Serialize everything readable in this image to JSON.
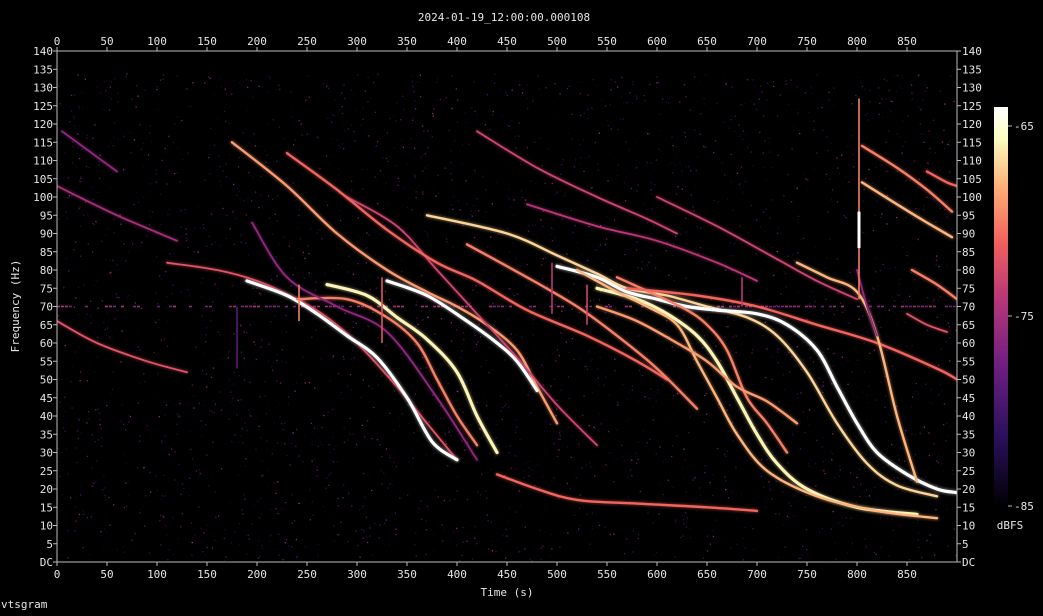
{
  "chart_data": {
    "type": "heatmap",
    "title": "2024-01-19_12:00:00.000108",
    "xlabel": "Time (s)",
    "ylabel": "Frequency (Hz)",
    "xlim": [
      0,
      900
    ],
    "ylim": [
      0,
      140
    ],
    "x_ticks": [
      "0",
      "50",
      "100",
      "150",
      "200",
      "250",
      "300",
      "350",
      "400",
      "450",
      "500",
      "550",
      "600",
      "650",
      "700",
      "750",
      "800",
      "850"
    ],
    "y_ticks": [
      "DC",
      "5",
      "10",
      "15",
      "20",
      "25",
      "30",
      "35",
      "40",
      "45",
      "50",
      "55",
      "60",
      "65",
      "70",
      "75",
      "80",
      "85",
      "90",
      "95",
      "100",
      "105",
      "110",
      "115",
      "120",
      "125",
      "130",
      "135",
      "140"
    ],
    "colorbar": {
      "label": "dBFS",
      "ticks": [
        "-65",
        "-75",
        "-85"
      ],
      "tick_values": [
        -65,
        -75,
        -85
      ],
      "range": [
        -85,
        -64
      ],
      "colormap": [
        "#000004",
        "#3b0f70",
        "#8c2981",
        "#de4968",
        "#fe9f6d",
        "#fcfdbf",
        "#ffffff"
      ]
    },
    "noise_band": [
      0,
      134
    ],
    "tones": [
      {
        "freq": 70,
        "t_start": 0,
        "t_end": 900,
        "level": -78
      }
    ],
    "tracks": [
      {
        "level": -72,
        "points": [
          [
            0,
            66
          ],
          [
            40,
            60
          ],
          [
            90,
            55
          ],
          [
            130,
            52
          ]
        ]
      },
      {
        "level": -75,
        "points": [
          [
            0,
            103
          ],
          [
            60,
            95
          ],
          [
            120,
            88
          ]
        ]
      },
      {
        "level": -76,
        "points": [
          [
            5,
            118
          ],
          [
            60,
            107
          ]
        ]
      },
      {
        "level": -72,
        "points": [
          [
            110,
            82
          ],
          [
            160,
            80
          ],
          [
            200,
            77
          ],
          [
            240,
            72
          ],
          [
            270,
            67
          ],
          [
            300,
            60
          ],
          [
            340,
            48
          ],
          [
            370,
            38
          ],
          [
            400,
            28
          ]
        ]
      },
      {
        "level": -64,
        "points": [
          [
            190,
            77
          ],
          [
            230,
            73
          ],
          [
            260,
            68
          ],
          [
            290,
            62
          ],
          [
            320,
            56
          ],
          [
            350,
            45
          ],
          [
            375,
            33
          ],
          [
            400,
            28
          ]
        ]
      },
      {
        "level": -70,
        "points": [
          [
            240,
            72
          ],
          [
            290,
            72
          ],
          [
            330,
            67
          ],
          [
            360,
            60
          ],
          [
            380,
            50
          ],
          [
            400,
            40
          ],
          [
            420,
            32
          ]
        ]
      },
      {
        "level": -66,
        "points": [
          [
            270,
            76
          ],
          [
            310,
            73
          ],
          [
            340,
            67
          ],
          [
            370,
            61
          ],
          [
            400,
            52
          ],
          [
            420,
            40
          ],
          [
            440,
            30
          ]
        ]
      },
      {
        "level": -69,
        "points": [
          [
            175,
            115
          ],
          [
            230,
            103
          ],
          [
            280,
            90
          ],
          [
            330,
            80
          ],
          [
            370,
            74
          ],
          [
            400,
            70
          ],
          [
            430,
            65
          ],
          [
            460,
            58
          ],
          [
            480,
            48
          ],
          [
            500,
            38
          ]
        ]
      },
      {
        "level": -64,
        "points": [
          [
            330,
            77
          ],
          [
            370,
            73
          ],
          [
            410,
            66
          ],
          [
            440,
            60
          ],
          [
            460,
            55
          ],
          [
            480,
            47
          ]
        ]
      },
      {
        "level": -73,
        "points": [
          [
            290,
            100
          ],
          [
            340,
            92
          ],
          [
            380,
            80
          ],
          [
            420,
            68
          ],
          [
            460,
            56
          ],
          [
            500,
            43
          ],
          [
            540,
            32
          ]
        ]
      },
      {
        "level": -71,
        "points": [
          [
            230,
            112
          ],
          [
            280,
            102
          ],
          [
            330,
            91
          ],
          [
            380,
            82
          ],
          [
            420,
            77
          ],
          [
            470,
            69
          ],
          [
            530,
            62
          ],
          [
            580,
            55
          ],
          [
            610,
            50
          ]
        ]
      },
      {
        "level": -76,
        "points": [
          [
            195,
            93
          ],
          [
            230,
            78
          ],
          [
            280,
            70
          ],
          [
            330,
            63
          ],
          [
            380,
            45
          ],
          [
            420,
            28
          ]
        ]
      },
      {
        "level": -70,
        "points": [
          [
            410,
            87
          ],
          [
            470,
            78
          ],
          [
            520,
            70
          ],
          [
            560,
            62
          ],
          [
            600,
            53
          ],
          [
            640,
            42
          ]
        ]
      },
      {
        "level": -67,
        "points": [
          [
            370,
            95
          ],
          [
            450,
            90
          ],
          [
            500,
            84
          ],
          [
            540,
            79
          ],
          [
            570,
            75
          ],
          [
            610,
            73
          ],
          [
            650,
            70
          ],
          [
            690,
            67
          ],
          [
            720,
            62
          ],
          [
            750,
            52
          ],
          [
            780,
            38
          ],
          [
            810,
            27
          ],
          [
            840,
            21
          ],
          [
            880,
            18
          ]
        ]
      },
      {
        "level": -64,
        "points": [
          [
            500,
            81
          ],
          [
            540,
            78
          ],
          [
            570,
            74
          ],
          [
            600,
            72
          ],
          [
            630,
            70
          ],
          [
            660,
            69
          ],
          [
            700,
            68
          ],
          [
            730,
            65
          ],
          [
            760,
            58
          ],
          [
            780,
            48
          ],
          [
            800,
            38
          ],
          [
            820,
            30
          ],
          [
            850,
            24
          ],
          [
            880,
            20
          ],
          [
            900,
            19
          ]
        ]
      },
      {
        "level": -66,
        "points": [
          [
            540,
            75
          ],
          [
            580,
            72
          ],
          [
            610,
            68
          ],
          [
            640,
            62
          ],
          [
            660,
            55
          ],
          [
            680,
            45
          ],
          [
            700,
            35
          ],
          [
            720,
            27
          ],
          [
            750,
            20
          ],
          [
            800,
            15
          ],
          [
            860,
            13
          ]
        ]
      },
      {
        "level": -68,
        "points": [
          [
            520,
            80
          ],
          [
            560,
            74
          ],
          [
            590,
            70
          ],
          [
            620,
            65
          ],
          [
            640,
            55
          ],
          [
            660,
            45
          ],
          [
            680,
            35
          ],
          [
            710,
            25
          ],
          [
            760,
            18
          ],
          [
            820,
            14
          ],
          [
            880,
            12
          ]
        ]
      },
      {
        "level": -70,
        "points": [
          [
            560,
            78
          ],
          [
            600,
            73
          ],
          [
            630,
            69
          ],
          [
            650,
            65
          ],
          [
            670,
            58
          ],
          [
            690,
            45
          ],
          [
            710,
            38
          ],
          [
            730,
            30
          ]
        ]
      },
      {
        "level": -69,
        "points": [
          [
            540,
            70
          ],
          [
            580,
            66
          ],
          [
            620,
            60
          ],
          [
            650,
            55
          ],
          [
            680,
            48
          ],
          [
            710,
            44
          ],
          [
            740,
            38
          ]
        ]
      },
      {
        "level": -71,
        "points": [
          [
            570,
            75
          ],
          [
            640,
            73
          ],
          [
            700,
            70
          ],
          [
            760,
            65
          ],
          [
            820,
            60
          ],
          [
            880,
            53
          ],
          [
            900,
            50
          ]
        ]
      },
      {
        "level": -71,
        "points": [
          [
            440,
            24
          ],
          [
            480,
            20
          ],
          [
            520,
            17
          ],
          [
            580,
            16
          ],
          [
            650,
            15
          ],
          [
            700,
            14
          ]
        ]
      },
      {
        "level": -74,
        "points": [
          [
            470,
            98
          ],
          [
            540,
            92
          ],
          [
            600,
            88
          ],
          [
            660,
            82
          ],
          [
            700,
            77
          ]
        ]
      },
      {
        "level": -73,
        "points": [
          [
            420,
            118
          ],
          [
            480,
            108
          ],
          [
            540,
            100
          ],
          [
            590,
            94
          ],
          [
            620,
            90
          ]
        ]
      },
      {
        "level": -73,
        "points": [
          [
            600,
            100
          ],
          [
            660,
            92
          ],
          [
            720,
            83
          ],
          [
            760,
            77
          ],
          [
            800,
            72
          ]
        ]
      },
      {
        "level": -68,
        "points": [
          [
            805,
            104
          ],
          [
            840,
            98
          ],
          [
            870,
            93
          ],
          [
            895,
            89
          ]
        ]
      },
      {
        "level": -70,
        "points": [
          [
            805,
            114
          ],
          [
            840,
            108
          ],
          [
            870,
            102
          ],
          [
            895,
            96
          ]
        ]
      },
      {
        "level": -68,
        "points": [
          [
            740,
            82
          ],
          [
            770,
            78
          ],
          [
            800,
            74
          ],
          [
            820,
            62
          ],
          [
            840,
            40
          ],
          [
            860,
            22
          ]
        ]
      },
      {
        "level": -70,
        "points": [
          [
            855,
            80
          ],
          [
            880,
            76
          ],
          [
            900,
            72
          ]
        ]
      },
      {
        "level": -71,
        "points": [
          [
            870,
            107
          ],
          [
            890,
            104
          ],
          [
            900,
            103
          ]
        ]
      },
      {
        "level": -72,
        "points": [
          [
            850,
            68
          ],
          [
            870,
            65
          ],
          [
            890,
            63
          ]
        ]
      },
      {
        "level": -76,
        "points": [
          [
            800,
            80
          ],
          [
            810,
            70
          ],
          [
            820,
            62
          ]
        ]
      }
    ],
    "spikes": [
      {
        "t": 180,
        "f_low": 53,
        "f_high": 70,
        "level": -79
      },
      {
        "t": 242,
        "f_low": 66,
        "f_high": 76,
        "level": -70
      },
      {
        "t": 325,
        "f_low": 60,
        "f_high": 78,
        "level": -72
      },
      {
        "t": 495,
        "f_low": 68,
        "f_high": 82,
        "level": -74
      },
      {
        "t": 530,
        "f_low": 65,
        "f_high": 76,
        "level": -73
      },
      {
        "t": 685,
        "f_low": 70,
        "f_high": 78,
        "level": -74
      },
      {
        "t": 802,
        "f_low": 72,
        "f_high": 127,
        "level": -70
      }
    ],
    "hot_spot": {
      "t": 802,
      "f_low": 86,
      "f_high": 96,
      "level": -64
    }
  },
  "footer": {
    "app_label": "vtsgram"
  },
  "colors": {
    "background": "#000000",
    "text": "#e6e6e6",
    "tone": "#8a2be2"
  }
}
